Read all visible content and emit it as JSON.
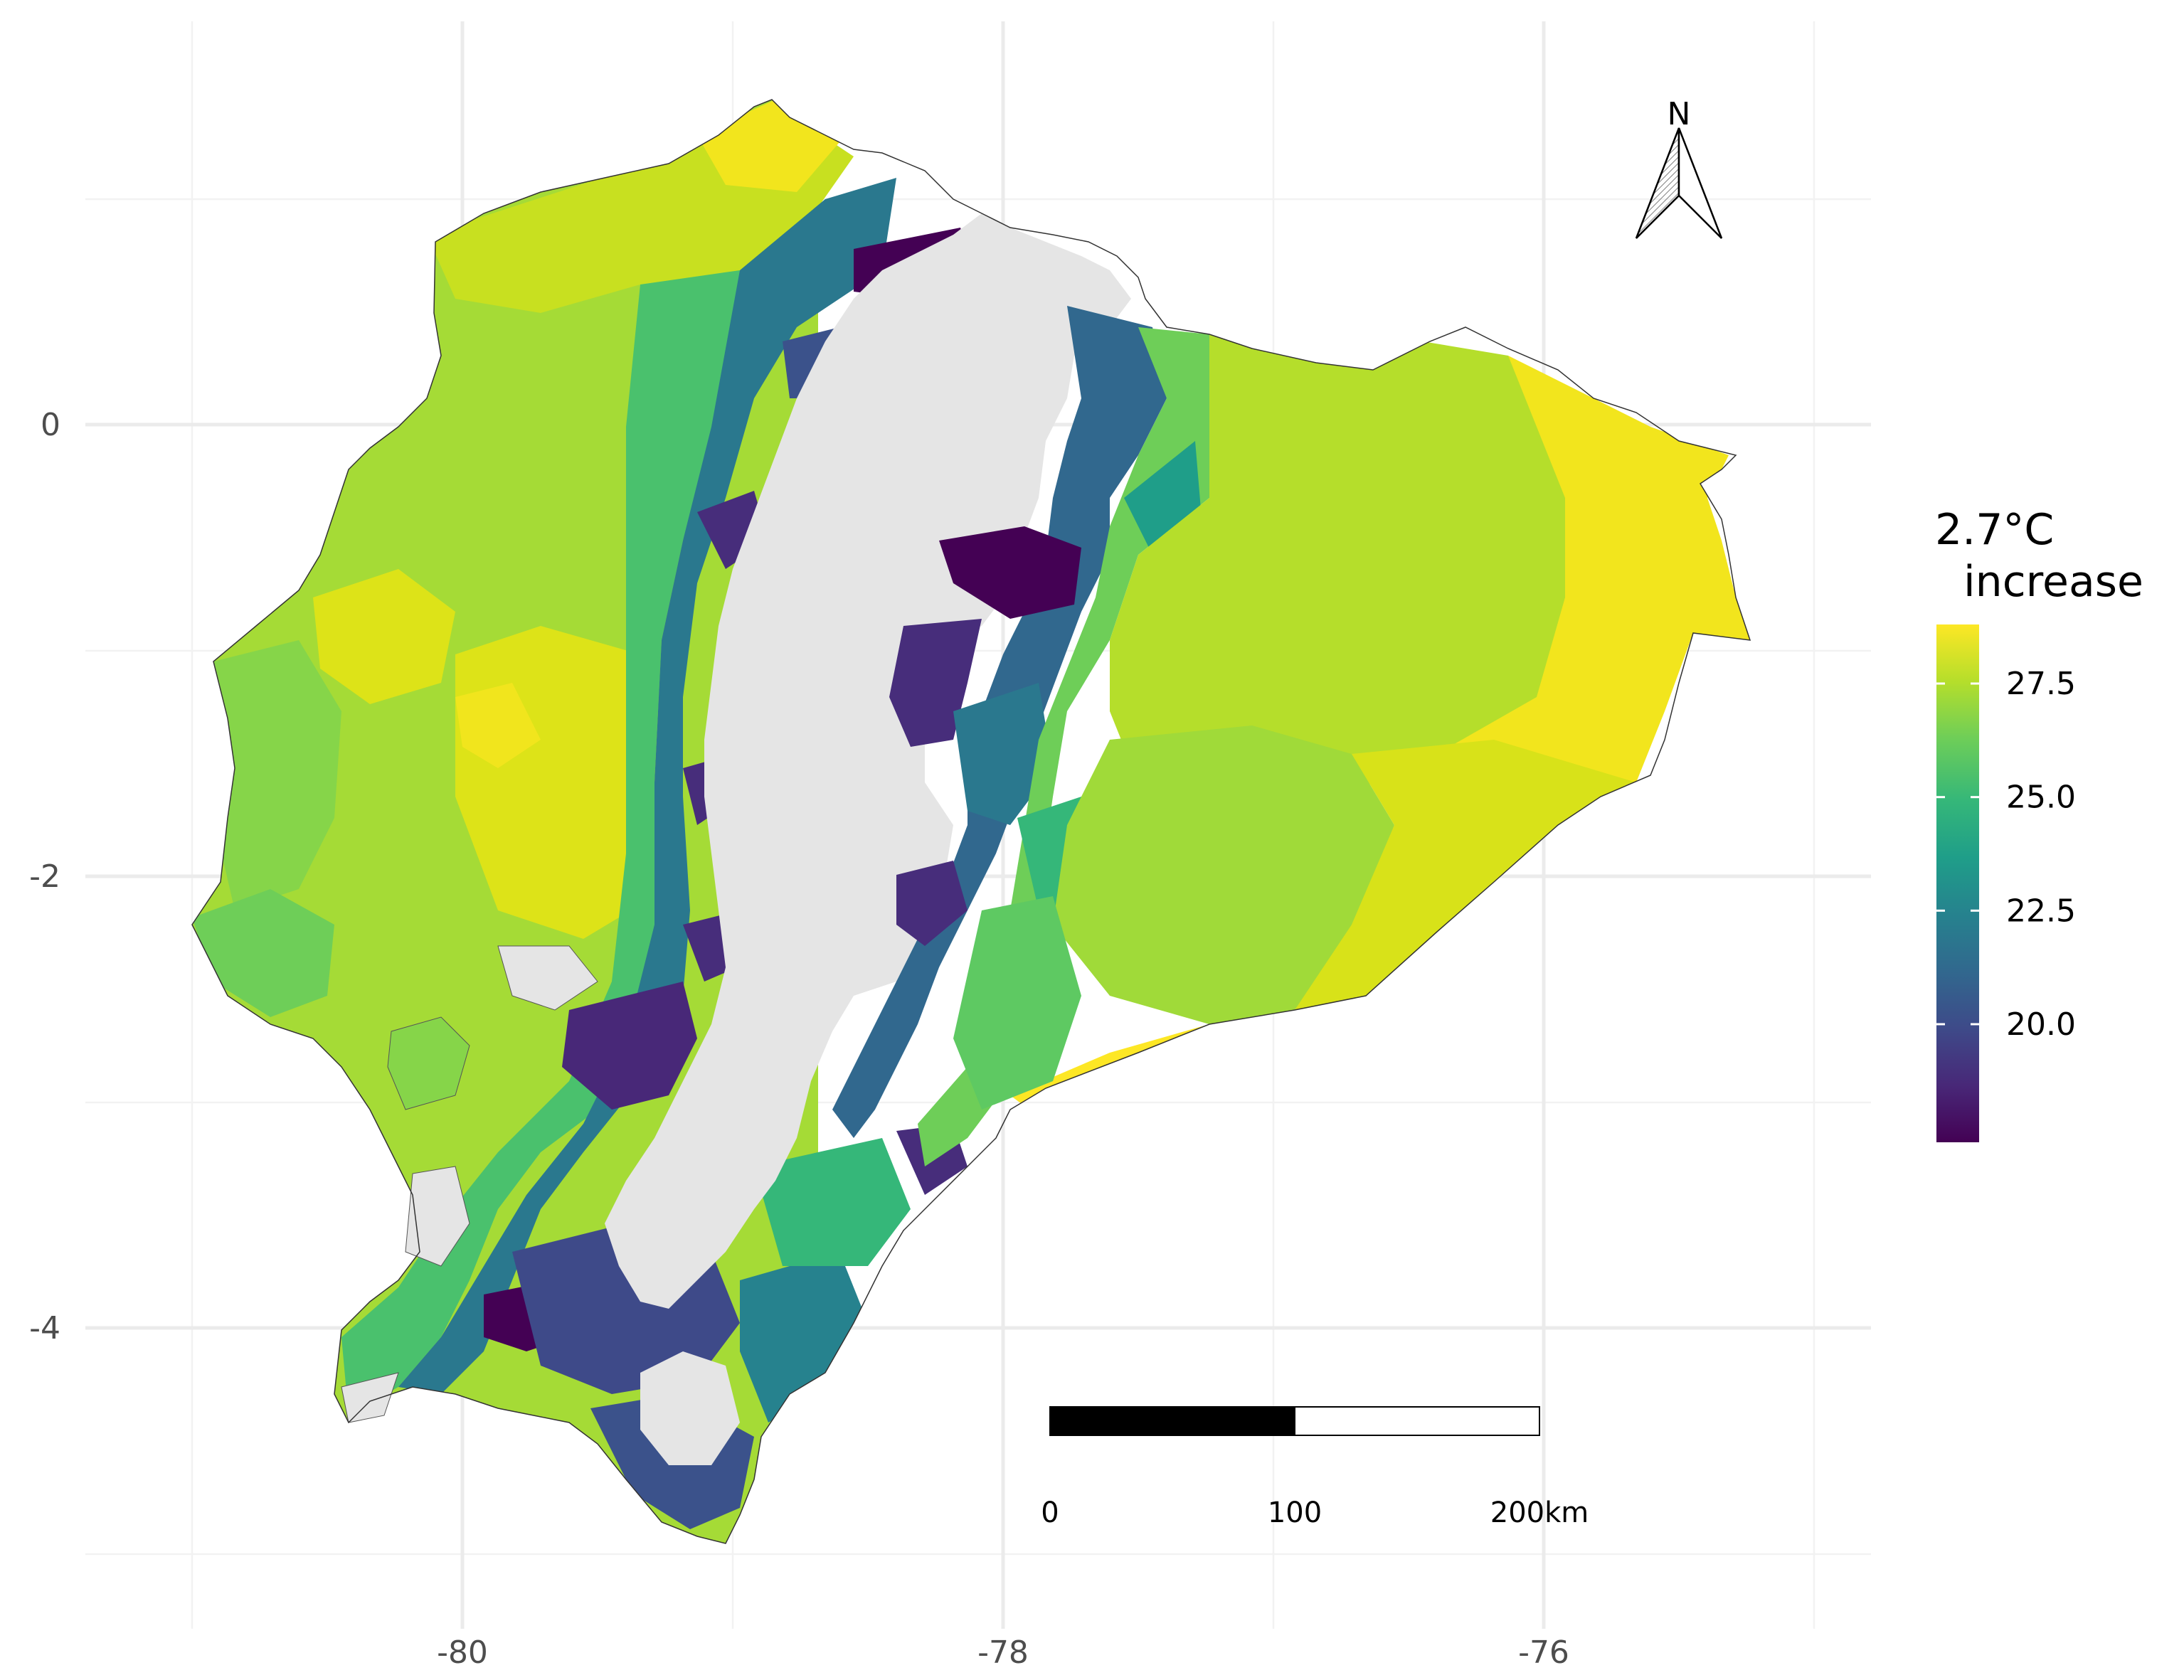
{
  "chart_data": {
    "type": "choropleth",
    "legend": {
      "title_line1": "2.7°C",
      "title_line2": "increase",
      "range": [
        17.4,
        28.8
      ],
      "ticks": [
        {
          "label": "27.5",
          "value": 27.5
        },
        {
          "label": "25.0",
          "value": 25.0
        },
        {
          "label": "22.5",
          "value": 22.5
        },
        {
          "label": "20.0",
          "value": 20.0
        }
      ],
      "palette": "viridis",
      "colors": [
        "#440154",
        "#482878",
        "#3e4a89",
        "#31688e",
        "#26828e",
        "#1f9e89",
        "#35b779",
        "#6ece58",
        "#b5de2b",
        "#fde725"
      ],
      "na_color": "#e5e5e5",
      "position": "right"
    },
    "x_axis": {
      "ticks": [
        {
          "label": "-80",
          "value": -80
        },
        {
          "label": "-78",
          "value": -78
        },
        {
          "label": "-76",
          "value": -76
        }
      ]
    },
    "y_axis": {
      "ticks": [
        {
          "label": "0",
          "value": 0
        },
        {
          "label": "-2",
          "value": -2
        },
        {
          "label": "-4",
          "value": -4
        }
      ]
    },
    "grid": true,
    "scalebar": {
      "labels": [
        "0",
        "100",
        "200km"
      ]
    },
    "north_arrow": {
      "label": "N"
    },
    "regions_note": "Ecuador parishes colored by value; highland (Andes) parishes have no data"
  }
}
